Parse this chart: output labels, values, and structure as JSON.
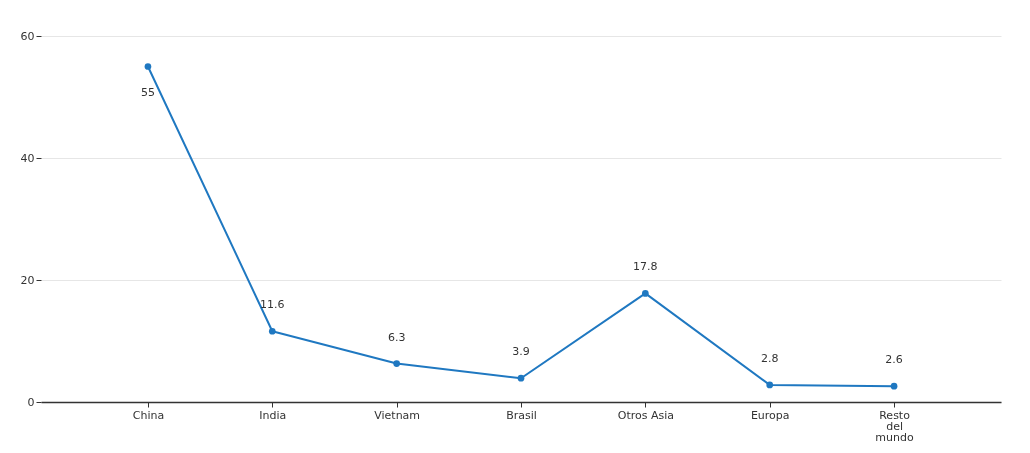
{
  "chart_data": {
    "type": "line",
    "categories": [
      "China",
      "India",
      "Vietnam",
      "Brasil",
      "Otros Asia",
      "Europa",
      "Resto del mundo"
    ],
    "values": [
      55,
      11.6,
      6.3,
      3.9,
      17.8,
      2.8,
      2.6
    ],
    "color": "#1f78c1",
    "ylim": [
      0,
      60
    ],
    "yticks": [
      0,
      20,
      40,
      60
    ],
    "grid": "y",
    "marker": "circle",
    "line_style": "solid",
    "data_labels": true
  }
}
